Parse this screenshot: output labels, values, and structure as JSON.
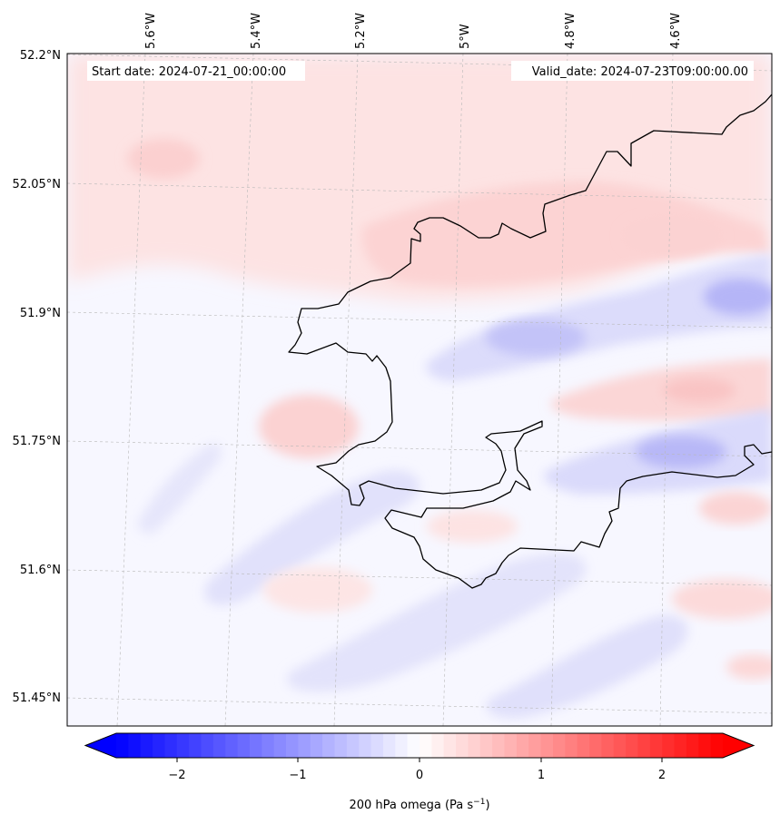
{
  "map": {
    "annotations": {
      "start": "Start date: 2024-07-21_00:00:00",
      "valid": "Valid_date: 2024-07-23T09:00:00.00"
    },
    "lon_labels": [
      "5.6°W",
      "5.4°W",
      "5.2°W",
      "5°W",
      "4.8°W",
      "4.6°W"
    ],
    "lat_labels": [
      "52.2°N",
      "52.05°N",
      "51.9°N",
      "51.75°N",
      "51.6°N",
      "51.45°N"
    ],
    "field": "200 hPa omega",
    "colormap": "bwr",
    "coastline_color": "#000000",
    "gridlines": true
  },
  "colorbar": {
    "label": "200 hPa omega (Pa s",
    "label_sup": "−1",
    "label_close": ")",
    "ticks": [
      "−2",
      "−1",
      "0",
      "1",
      "2"
    ],
    "range": [
      -2.5,
      2.5
    ],
    "extend": "both",
    "min_color": "#0000ff",
    "mid_color": "#ffffff",
    "max_color": "#ff0000"
  }
}
